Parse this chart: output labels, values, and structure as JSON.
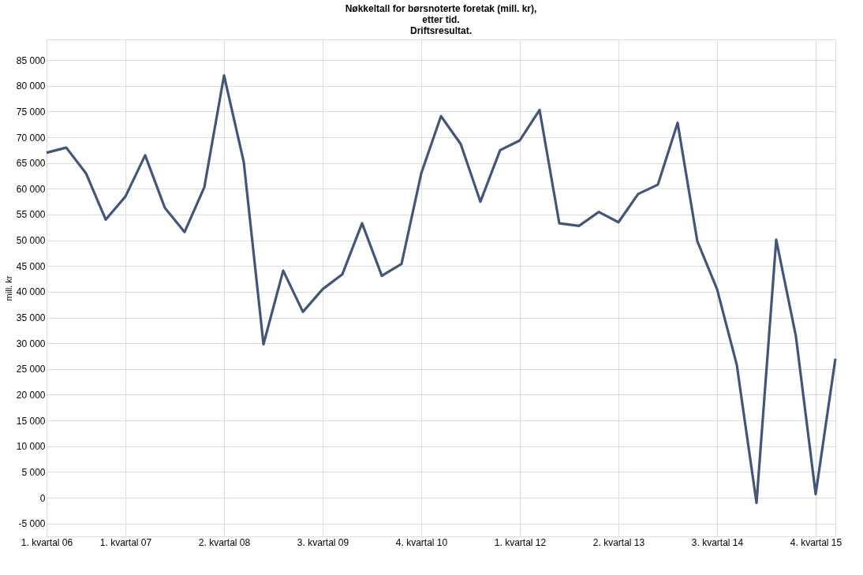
{
  "chart_data": {
    "type": "line",
    "title": "Nøkkeltall for børsnoterte foretak (mill. kr),\netter tid.\nDriftsresultat.",
    "ylabel": "mill. kr",
    "categories": [
      "1. kvartal  06",
      null,
      null,
      null,
      "1. kvartal  07",
      null,
      null,
      null,
      null,
      "2. kvartal  08",
      null,
      null,
      null,
      null,
      "3. kvartal  09",
      null,
      null,
      null,
      null,
      "4. kvartal  10",
      null,
      null,
      null,
      null,
      "1. kvartal  12",
      null,
      null,
      null,
      null,
      "2. kvartal  13",
      null,
      null,
      null,
      null,
      "3. kvartal  14",
      null,
      null,
      null,
      null,
      "4. kvartal  15",
      null
    ],
    "series": [
      {
        "color": "#435677",
        "values": [
          67000,
          68000,
          63000,
          54000,
          58500,
          66500,
          56300,
          51600,
          60300,
          82000,
          65200,
          29800,
          44100,
          36100,
          40500,
          43400,
          53300,
          43100,
          45400,
          63000,
          74100,
          68700,
          57500,
          67500,
          69400,
          75300,
          53300,
          52800,
          55500,
          53500,
          59000,
          60800,
          72800,
          49800,
          40500,
          25800,
          -1000,
          50100,
          31300,
          700,
          27000
        ]
      }
    ],
    "ylim": [
      -7500,
      89000
    ],
    "yticks": [
      {
        "value": -5000,
        "label": "-5 000"
      },
      0,
      {
        "value": 5000,
        "label": "5 000"
      },
      {
        "value": 10000,
        "label": "10 000"
      },
      {
        "value": 15000,
        "label": "15 000"
      },
      {
        "value": 20000,
        "label": "20 000"
      },
      {
        "value": 25000,
        "label": "25 000"
      },
      {
        "value": 30000,
        "label": "30 000"
      },
      {
        "value": 35000,
        "label": "35 000"
      },
      {
        "value": 40000,
        "label": "40 000"
      },
      {
        "value": 45000,
        "label": "45 000"
      },
      {
        "value": 50000,
        "label": "50 000"
      },
      {
        "value": 55000,
        "label": "55 000"
      },
      {
        "value": 60000,
        "label": "60 000"
      },
      {
        "value": 65000,
        "label": "65 000"
      },
      {
        "value": 70000,
        "label": "70 000"
      },
      {
        "value": 75000,
        "label": "75 000"
      },
      {
        "value": 80000,
        "label": "80 000"
      },
      {
        "value": 85000,
        "label": "85 000"
      }
    ],
    "grid": true,
    "line_style": "solid",
    "marker": "none"
  }
}
